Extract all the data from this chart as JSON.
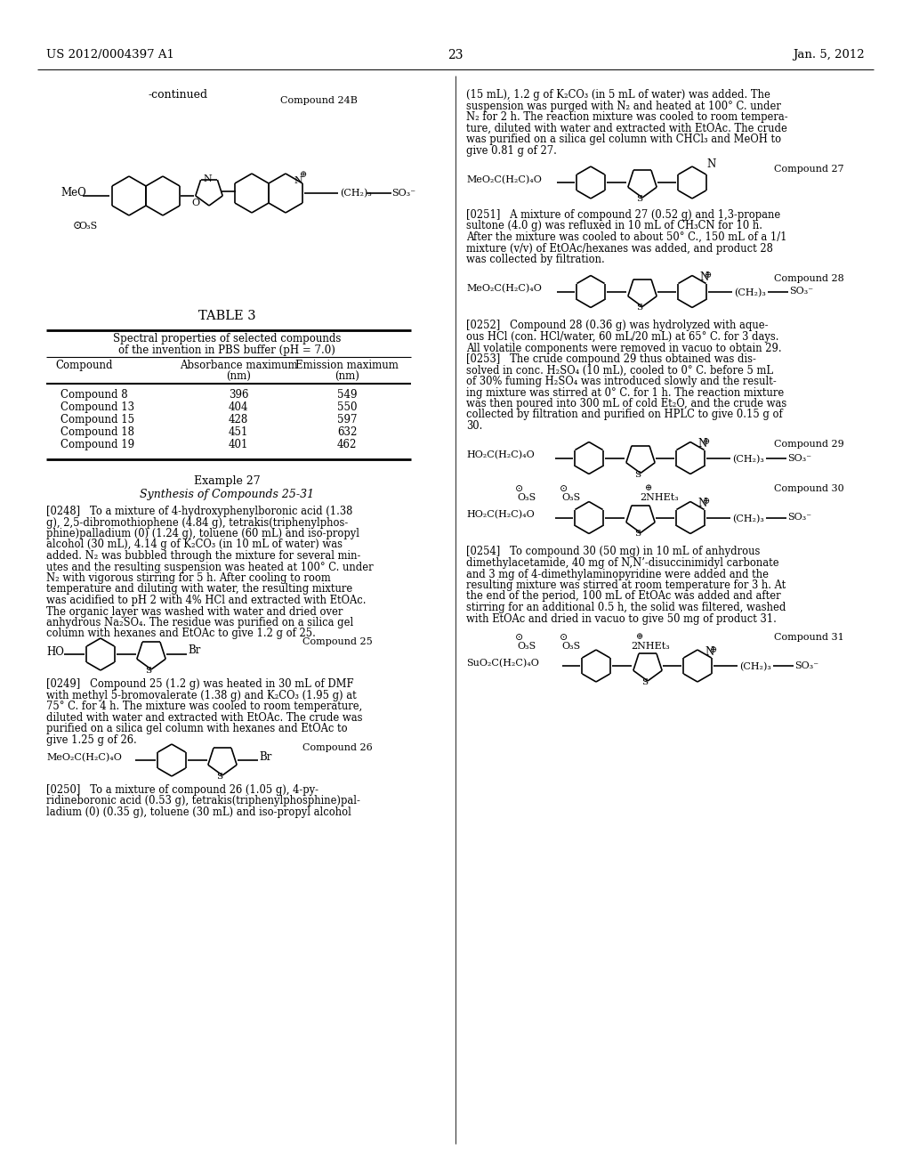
{
  "page_number": "23",
  "patent_number": "US 2012/0004397 A1",
  "patent_date": "Jan. 5, 2012",
  "background_color": "#ffffff",
  "table_title": "TABLE 3",
  "table_header1": "Spectral properties of selected compounds",
  "table_header2": "of the invention in PBS buffer (pH = 7.0)",
  "table_col1": "Compound",
  "table_col2": "Absorbance maximum\n(nm)",
  "table_col3": "Emission maximum\n(nm)",
  "table_data": [
    [
      "Compound 8",
      "396",
      "549"
    ],
    [
      "Compound 13",
      "404",
      "550"
    ],
    [
      "Compound 15",
      "428",
      "597"
    ],
    [
      "Compound 18",
      "451",
      "632"
    ],
    [
      "Compound 19",
      "401",
      "462"
    ]
  ],
  "section_title": "Example 27",
  "section_subtitle": "Synthesis of Compounds 25-31",
  "p0248_lines": [
    "[0248]   To a mixture of 4-hydroxyphenylboronic acid (1.38",
    "g), 2,5-dibromothiophene (4.84 g), tetrakis(triphenylphos-",
    "phine)palladium (0) (1.24 g), toluene (60 mL) and iso-propyl",
    "alcohol (30 mL), 4.14 g of K₂CO₃ (in 10 mL of water) was",
    "added. N₂ was bubbled through the mixture for several min-",
    "utes and the resulting suspension was heated at 100° C. under",
    "N₂ with vigorous stirring for 5 h. After cooling to room",
    "temperature and diluting with water, the resulting mixture",
    "was acidified to pH 2 with 4% HCl and extracted with EtOAc.",
    "The organic layer was washed with water and dried over",
    "anhydrous Na₂SO₄. The residue was purified on a silica gel",
    "column with hexanes and EtOAc to give 1.2 g of 25."
  ],
  "p0249_lines": [
    "[0249]   Compound 25 (1.2 g) was heated in 30 mL of DMF",
    "with methyl 5-bromovalerate (1.38 g) and K₂CO₃ (1.95 g) at",
    "75° C. for 4 h. The mixture was cooled to room temperature,",
    "diluted with water and extracted with EtOAc. The crude was",
    "purified on a silica gel column with hexanes and EtOAc to",
    "give 1.25 g of 26."
  ],
  "p0250_lines": [
    "[0250]   To a mixture of compound 26 (1.05 g), 4-py-",
    "ridineboronic acid (0.53 g), tetrakis(triphenylphosphine)pal-",
    "ladium (0) (0.35 g), toluene (30 mL) and iso-propyl alcohol"
  ],
  "p0250r_lines": [
    "(15 mL), 1.2 g of K₂CO₃ (in 5 mL of water) was added. The",
    "suspension was purged with N₂ and heated at 100° C. under",
    "N₂ for 2 h. The reaction mixture was cooled to room tempera-",
    "ture, diluted with water and extracted with EtOAc. The crude",
    "was purified on a silica gel column with CHCl₃ and MeOH to",
    "give 0.81 g of 27."
  ],
  "p0251_lines": [
    "[0251]   A mixture of compound 27 (0.52 g) and 1,3-propane",
    "sultone (4.0 g) was refluxed in 10 mL of CH₃CN for 10 h.",
    "After the mixture was cooled to about 50° C., 150 mL of a 1/1",
    "mixture (v/v) of EtOAc/hexanes was added, and product 28",
    "was collected by filtration."
  ],
  "p0252_lines": [
    "[0252]   Compound 28 (0.36 g) was hydrolyzed with aque-",
    "ous HCl (con. HCl/water, 60 mL/20 mL) at 65° C. for 3 days.",
    "All volatile components were removed in vacuo to obtain 29."
  ],
  "p0253_lines": [
    "[0253]   The crude compound 29 thus obtained was dis-",
    "solved in conc. H₂SO₄ (10 mL), cooled to 0° C. before 5 mL",
    "of 30% fuming H₂SO₄ was introduced slowly and the result-",
    "ing mixture was stirred at 0° C. for 1 h. The reaction mixture",
    "was then poured into 300 mL of cold Et₂O, and the crude was",
    "collected by filtration and purified on HPLC to give 0.15 g of",
    "30."
  ],
  "p0254_lines": [
    "[0254]   To compound 30 (50 mg) in 10 mL of anhydrous",
    "dimethylacetamide, 40 mg of N,N’-disuccinimidyl carbonate",
    "and 3 mg of 4-dimethylaminopyridine were added and the",
    "resulting mixture was stirred at room temperature for 3 h. At",
    "the end of the period, 100 mL of EtOAc was added and after",
    "stirring for an additional 0.5 h, the solid was filtered, washed",
    "with EtOAc and dried in vacuo to give 50 mg of product 31."
  ]
}
